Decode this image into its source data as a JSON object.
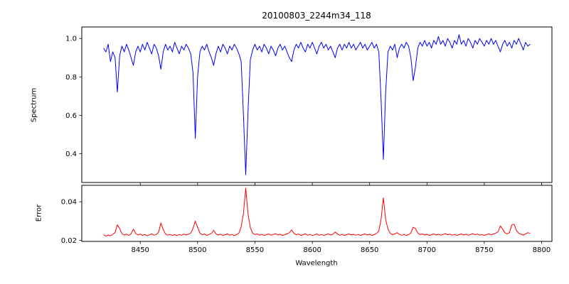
{
  "figure": {
    "title": "20100803_2244m34_118",
    "xlabel": "Wavelength",
    "ylabel_top": "Spectrum",
    "ylabel_bottom": "Error",
    "background_color": "#ffffff",
    "axis_color": "#000000"
  },
  "chart_data": [
    {
      "name": "spectrum",
      "type": "line",
      "title": "20100803_2244m34_118",
      "ylabel": "Spectrum",
      "color": "#0000ff",
      "legend": "none",
      "grid": false,
      "x_start": 8418,
      "x_step": 2,
      "xlim": [
        8399,
        8809
      ],
      "ylim": [
        0.25,
        1.06
      ],
      "ytick_values": [
        0.4,
        0.6,
        0.8,
        1.0
      ],
      "ytick_labels": [
        "0.4",
        "0.6",
        "0.8",
        "1.0"
      ],
      "xtick_values": [
        8450,
        8500,
        8550,
        8600,
        8650,
        8700,
        8750,
        8800
      ],
      "xtick_labels": [],
      "show_xtick_labels": false,
      "y": [
        0.95,
        0.93,
        0.97,
        0.88,
        0.93,
        0.9,
        0.72,
        0.91,
        0.96,
        0.93,
        0.97,
        0.94,
        0.9,
        0.86,
        0.93,
        0.96,
        0.93,
        0.97,
        0.94,
        0.98,
        0.95,
        0.92,
        0.97,
        0.95,
        0.91,
        0.84,
        0.93,
        0.97,
        0.94,
        0.96,
        0.93,
        0.98,
        0.95,
        0.92,
        0.96,
        0.94,
        0.97,
        0.95,
        0.92,
        0.82,
        0.48,
        0.8,
        0.93,
        0.96,
        0.94,
        0.97,
        0.93,
        0.9,
        0.86,
        0.92,
        0.96,
        0.93,
        0.97,
        0.95,
        0.92,
        0.96,
        0.94,
        0.97,
        0.95,
        0.92,
        0.88,
        0.6,
        0.29,
        0.63,
        0.89,
        0.94,
        0.97,
        0.94,
        0.96,
        0.93,
        0.97,
        0.95,
        0.92,
        0.96,
        0.94,
        0.91,
        0.95,
        0.97,
        0.94,
        0.96,
        0.93,
        0.9,
        0.88,
        0.94,
        0.97,
        0.95,
        0.98,
        0.95,
        0.93,
        0.97,
        0.95,
        0.98,
        0.95,
        0.92,
        0.96,
        0.98,
        0.95,
        0.97,
        0.94,
        0.96,
        0.93,
        0.9,
        0.95,
        0.97,
        0.94,
        0.97,
        0.95,
        0.98,
        0.95,
        0.97,
        0.94,
        0.96,
        0.98,
        0.95,
        0.97,
        0.94,
        0.96,
        0.98,
        0.95,
        0.97,
        0.93,
        0.68,
        0.37,
        0.72,
        0.93,
        0.96,
        0.94,
        0.97,
        0.9,
        0.95,
        0.97,
        0.95,
        0.98,
        0.96,
        0.9,
        0.78,
        0.85,
        0.95,
        0.98,
        0.96,
        0.99,
        0.96,
        0.98,
        0.95,
        0.99,
        0.97,
        1.01,
        0.97,
        0.99,
        0.96,
        1.0,
        0.98,
        0.95,
        0.99,
        0.97,
        1.02,
        0.97,
        0.99,
        0.96,
        1.0,
        0.98,
        0.95,
        0.99,
        0.97,
        1.0,
        0.98,
        0.96,
        0.99,
        0.97,
        1.0,
        0.97,
        0.99,
        0.96,
        0.93,
        0.97,
        0.99,
        0.96,
        0.98,
        0.95,
        0.99,
        0.97,
        1.0,
        0.97,
        0.94,
        0.98,
        0.96,
        0.97
      ]
    },
    {
      "name": "error",
      "type": "line",
      "ylabel": "Error",
      "xlabel": "Wavelength",
      "color": "#ff0000",
      "legend": "none",
      "grid": false,
      "x_start": 8418,
      "x_step": 2,
      "xlim": [
        8399,
        8809
      ],
      "ylim": [
        0.0195,
        0.0485
      ],
      "ytick_values": [
        0.02,
        0.04
      ],
      "ytick_labels": [
        "0.02",
        "0.04"
      ],
      "xtick_values": [
        8450,
        8500,
        8550,
        8600,
        8650,
        8700,
        8750,
        8800
      ],
      "xtick_labels": [
        "8450",
        "8500",
        "8550",
        "8600",
        "8650",
        "8700",
        "8750",
        "8800"
      ],
      "show_xtick_labels": true,
      "y": [
        0.023,
        0.0222,
        0.0228,
        0.0224,
        0.0232,
        0.024,
        0.028,
        0.0262,
        0.0235,
        0.0228,
        0.0232,
        0.0226,
        0.0234,
        0.0258,
        0.0236,
        0.0228,
        0.0233,
        0.0226,
        0.0231,
        0.0224,
        0.0229,
        0.0234,
        0.0227,
        0.0231,
        0.0242,
        0.029,
        0.0256,
        0.0233,
        0.0227,
        0.0231,
        0.0226,
        0.023,
        0.0225,
        0.0231,
        0.0227,
        0.0233,
        0.0228,
        0.0232,
        0.0238,
        0.0262,
        0.03,
        0.0268,
        0.0238,
        0.0229,
        0.0233,
        0.0226,
        0.0231,
        0.0236,
        0.0252,
        0.0234,
        0.0228,
        0.0232,
        0.0226,
        0.023,
        0.0234,
        0.0227,
        0.0231,
        0.0225,
        0.023,
        0.0238,
        0.027,
        0.034,
        0.047,
        0.0335,
        0.0266,
        0.0238,
        0.023,
        0.0234,
        0.0227,
        0.0231,
        0.0226,
        0.023,
        0.0234,
        0.0227,
        0.0231,
        0.0235,
        0.0228,
        0.0232,
        0.0226,
        0.023,
        0.0234,
        0.024,
        0.0254,
        0.0236,
        0.0229,
        0.0233,
        0.0226,
        0.023,
        0.0234,
        0.0227,
        0.0231,
        0.0225,
        0.0229,
        0.0233,
        0.0227,
        0.0231,
        0.0226,
        0.023,
        0.0234,
        0.0228,
        0.0232,
        0.0244,
        0.0233,
        0.0227,
        0.0231,
        0.0226,
        0.023,
        0.0234,
        0.0228,
        0.0232,
        0.0227,
        0.0231,
        0.0226,
        0.023,
        0.0234,
        0.0228,
        0.0232,
        0.0226,
        0.023,
        0.0236,
        0.0248,
        0.031,
        0.042,
        0.0308,
        0.0258,
        0.0236,
        0.023,
        0.0234,
        0.024,
        0.0231,
        0.0227,
        0.0231,
        0.0226,
        0.023,
        0.0238,
        0.0268,
        0.0262,
        0.0238,
        0.023,
        0.0234,
        0.0228,
        0.0232,
        0.0226,
        0.023,
        0.0234,
        0.0228,
        0.0232,
        0.0227,
        0.0231,
        0.0235,
        0.0229,
        0.0233,
        0.0227,
        0.0231,
        0.0226,
        0.023,
        0.0234,
        0.0228,
        0.0232,
        0.0227,
        0.0231,
        0.0235,
        0.0229,
        0.0233,
        0.0227,
        0.0231,
        0.0226,
        0.023,
        0.0234,
        0.0229,
        0.0233,
        0.0238,
        0.0244,
        0.0275,
        0.0258,
        0.024,
        0.0234,
        0.024,
        0.028,
        0.0284,
        0.0252,
        0.0238,
        0.0232,
        0.0228,
        0.0234,
        0.024,
        0.0236
      ]
    }
  ]
}
